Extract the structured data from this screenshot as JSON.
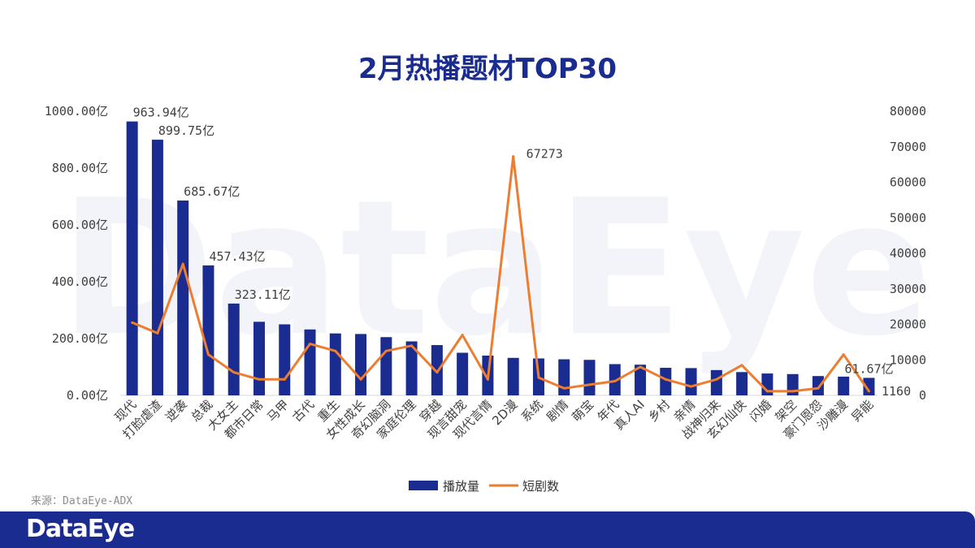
{
  "chart_data": {
    "type": "bar+line",
    "title": "2月热播题材TOP30",
    "categories": [
      "现代",
      "打脸虐渣",
      "逆袭",
      "总裁",
      "大女主",
      "都市日常",
      "马甲",
      "古代",
      "重生",
      "女性成长",
      "奇幻脑洞",
      "家庭伦理",
      "穿越",
      "现言甜宠",
      "现代言情",
      "2D漫",
      "系统",
      "剧情",
      "萌宝",
      "年代",
      "真人AI",
      "乡村",
      "亲情",
      "战神归来",
      "玄幻仙侠",
      "闪婚",
      "架空",
      "豪门恩怨",
      "沙雕漫",
      "异能"
    ],
    "series": [
      {
        "name": "播放量",
        "type": "bar",
        "axis": "left",
        "color": "#1a2c8f",
        "values": [
          963.94,
          899.75,
          685.67,
          457.43,
          323.11,
          259,
          250,
          232,
          218,
          216,
          205,
          190,
          177,
          150,
          140,
          132,
          130,
          127,
          125,
          110,
          108,
          97,
          96,
          89,
          82,
          77,
          75,
          68,
          66,
          61.67
        ]
      },
      {
        "name": "短剧数",
        "type": "line",
        "axis": "right",
        "color": "#ed7d31",
        "values": [
          20500,
          17500,
          37000,
          11500,
          6500,
          4500,
          4500,
          14500,
          12500,
          4500,
          12500,
          14000,
          6500,
          17000,
          4500,
          67273,
          5000,
          2000,
          3000,
          4000,
          8000,
          4500,
          2500,
          4500,
          8500,
          1160,
          1160,
          2000,
          11500,
          1160
        ]
      }
    ],
    "y_left": {
      "min": 0,
      "max": 1000,
      "ticks": [
        "0.00亿",
        "200.00亿",
        "400.00亿",
        "600.00亿",
        "800.00亿",
        "1000.00亿"
      ]
    },
    "y_right": {
      "min": 0,
      "max": 80000,
      "ticks": [
        "0",
        "10000",
        "20000",
        "30000",
        "40000",
        "50000",
        "60000",
        "70000",
        "80000"
      ]
    },
    "bar_data_labels": [
      "963.94亿",
      "899.75亿",
      "685.67亿",
      "457.43亿",
      "323.11亿",
      "61.67亿"
    ],
    "line_data_labels": [
      "67273",
      "1160"
    ],
    "legend": {
      "position": "bottom",
      "items": [
        "播放量",
        "短剧数"
      ]
    }
  },
  "source_text": "来源：DataEye-ADX",
  "brand": "DataEye",
  "watermark": "DataEye",
  "colors": {
    "bar": "#1a2c8f",
    "line": "#ed7d31",
    "footer": "#1a2c8f",
    "title": "#1a2c8f"
  }
}
